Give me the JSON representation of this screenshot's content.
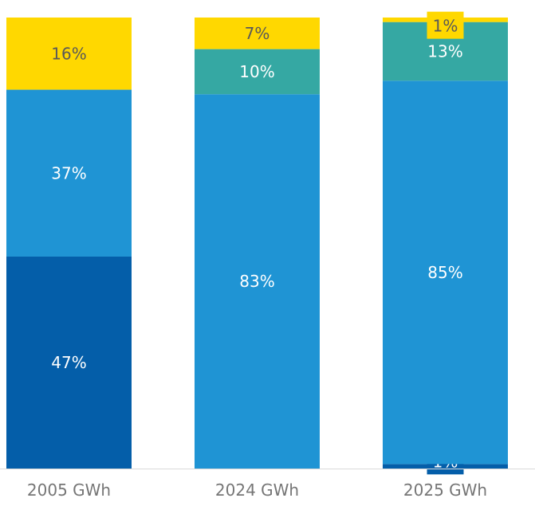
{
  "chart_data": {
    "type": "bar",
    "stacked": "percent",
    "grid": false,
    "legend": "none",
    "categories": [
      "2005 GWh",
      "2024 GWh",
      "2025 GWh"
    ],
    "series": [
      {
        "values": [
          47,
          0,
          1
        ],
        "labels": [
          "47%",
          "",
          "1%"
        ],
        "color": "#045EA9",
        "label_color": "#ffffff"
      },
      {
        "values": [
          37,
          83,
          85
        ],
        "labels": [
          "37%",
          "83%",
          "85%"
        ],
        "color": "#1F94D4",
        "label_color": "#ffffff"
      },
      {
        "values": [
          0,
          10,
          13
        ],
        "labels": [
          "",
          "10%",
          "13%"
        ],
        "color": "#35A8A3",
        "label_color": "#ffffff"
      },
      {
        "values": [
          16,
          7,
          1
        ],
        "labels": [
          "16%",
          "7%",
          "1%"
        ],
        "color": "#FFD800",
        "label_color": "#595959"
      }
    ],
    "ylim": [
      0,
      100
    ],
    "axis_color": "#D9D9D9"
  }
}
